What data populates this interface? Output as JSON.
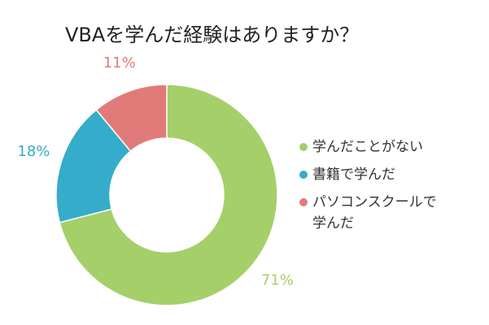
{
  "chart_data": {
    "type": "donut",
    "title": "VBAを学んだ経験はありますか？",
    "categories": [
      "学んだことがない",
      "書籍で学んだ",
      "パソコンスクールで学んだ"
    ],
    "values": [
      71,
      18,
      11
    ],
    "value_labels": [
      "71%",
      "18%",
      "11%"
    ],
    "colors": [
      "#a5cf69",
      "#35acc9",
      "#e07b7a"
    ],
    "legend": "right"
  }
}
